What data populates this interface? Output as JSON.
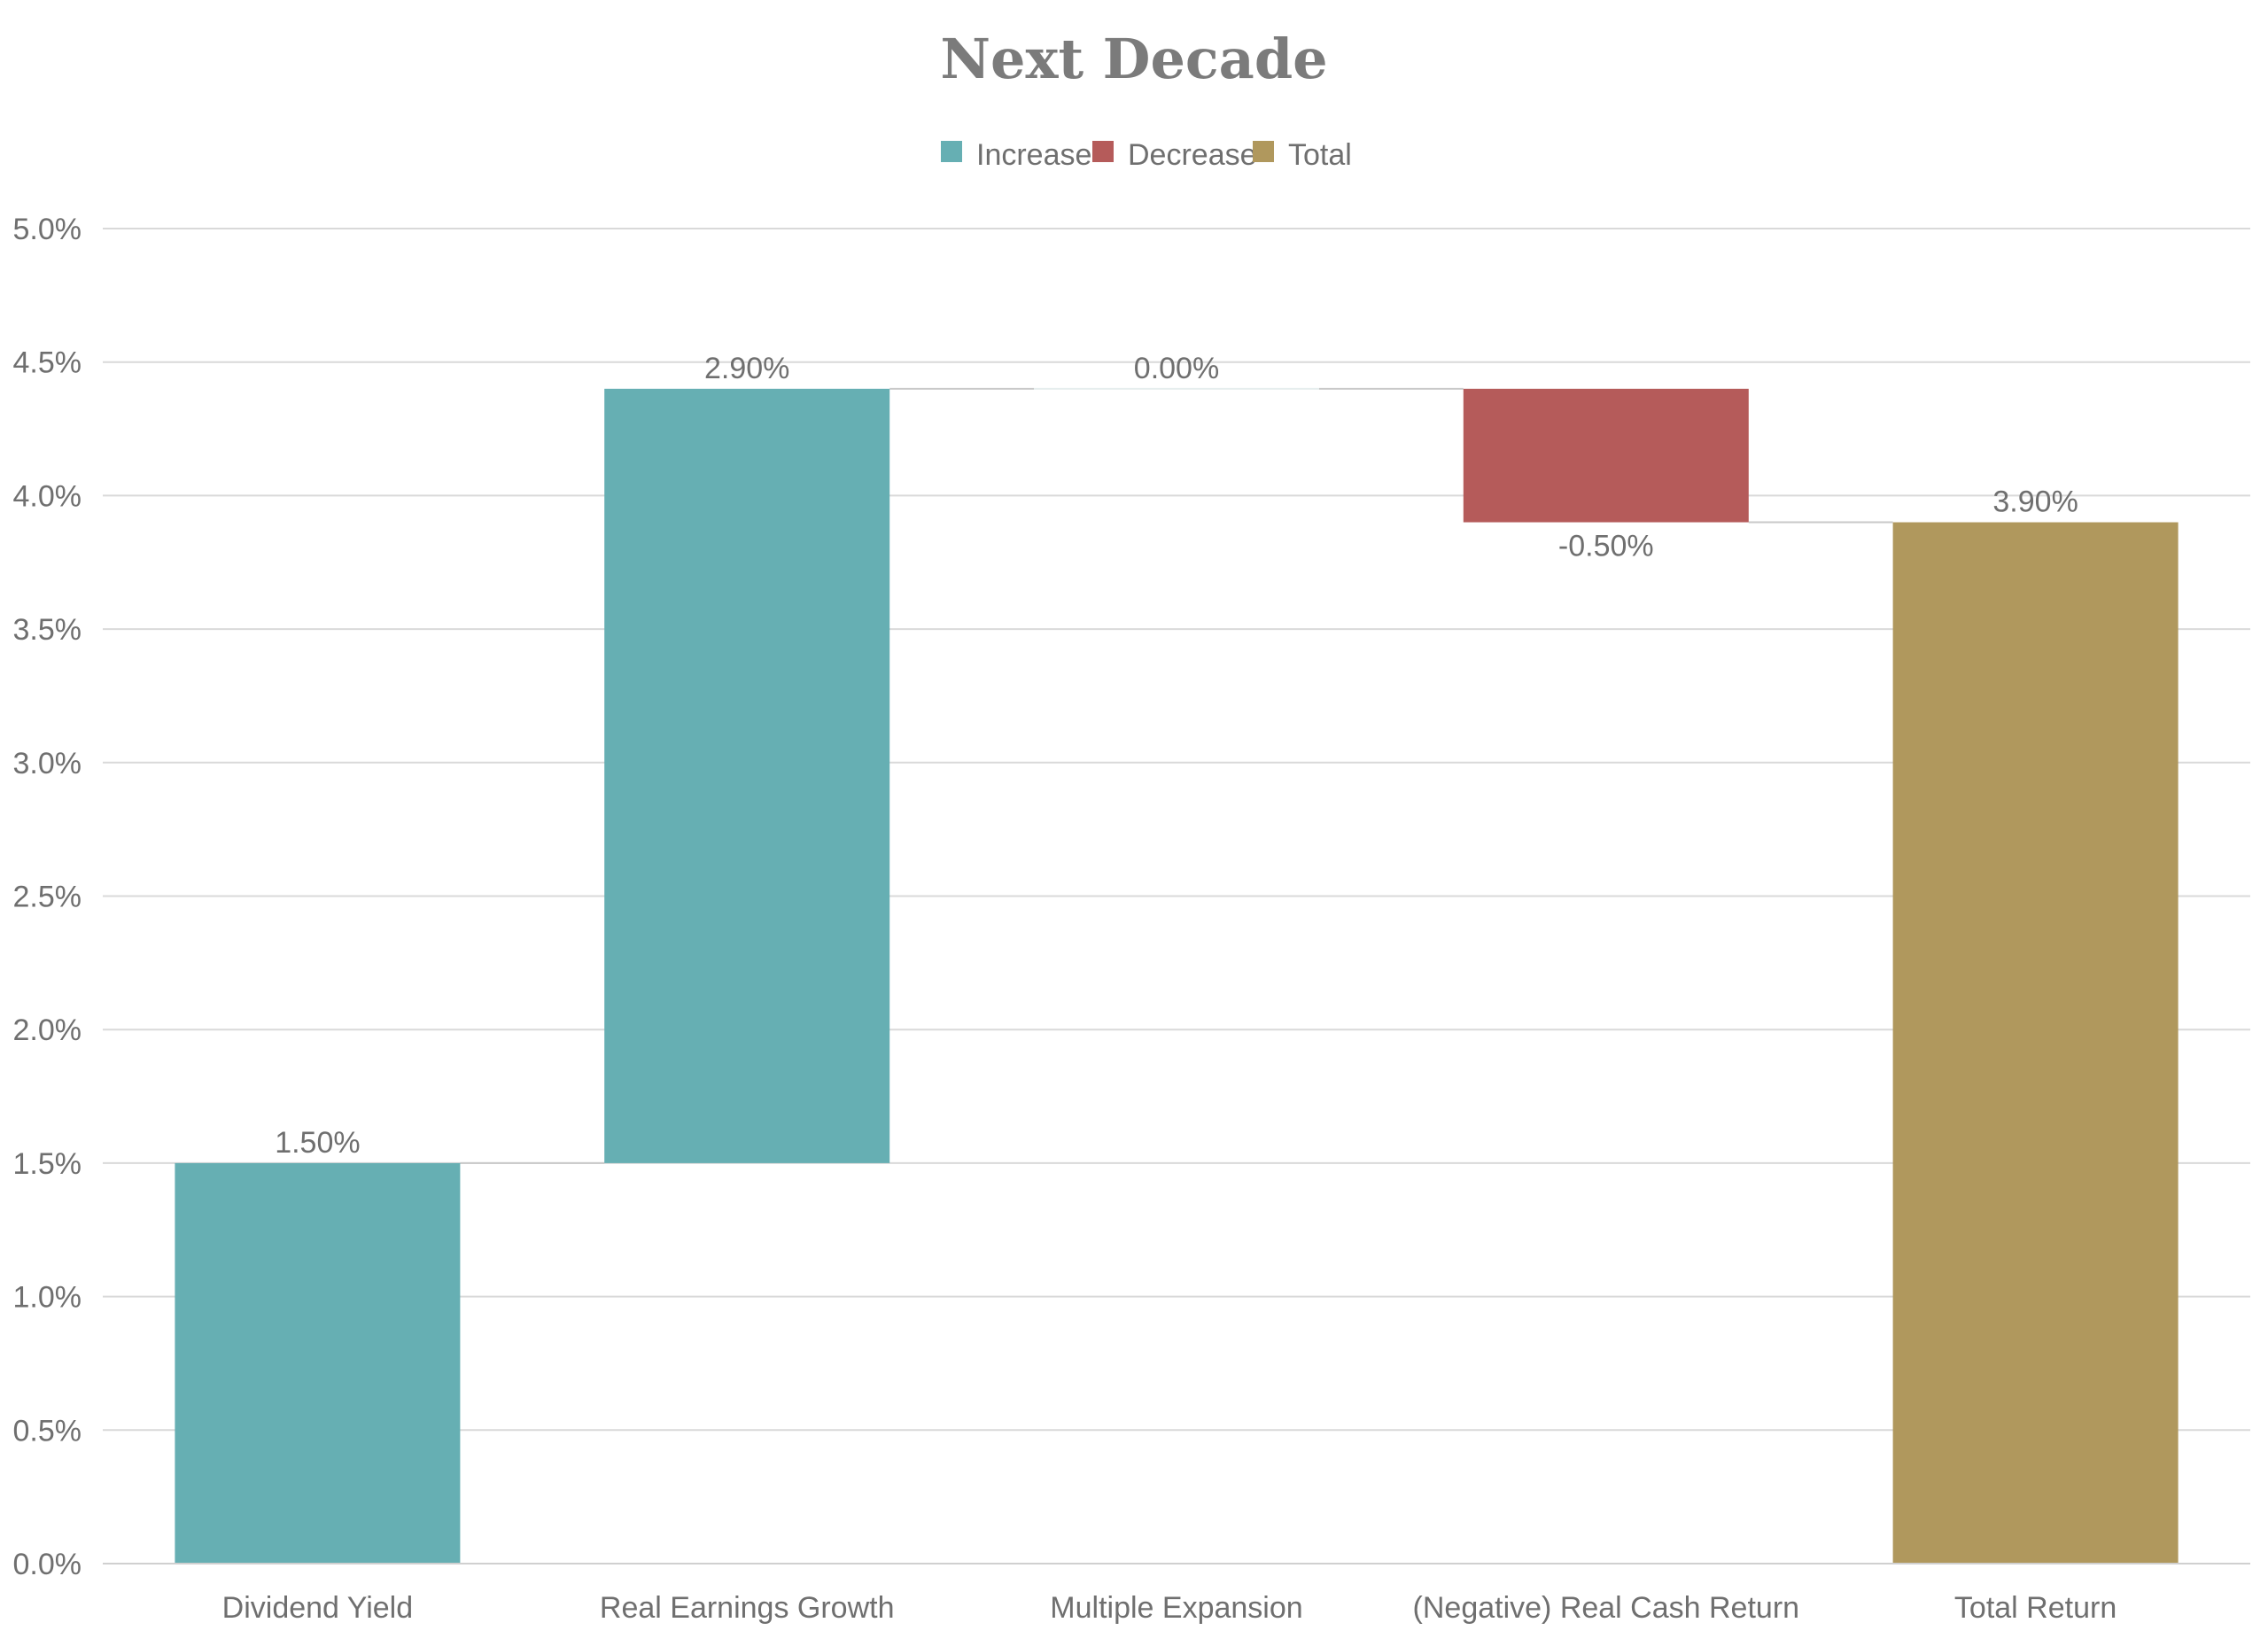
{
  "chart_data": {
    "type": "bar",
    "subtype": "waterfall",
    "title": "Next Decade",
    "xlabel": "",
    "ylabel": "",
    "ylim": [
      0,
      5.0
    ],
    "grid": true,
    "legend": {
      "placement": "top-center",
      "entries": [
        {
          "name": "Increase",
          "color": "#66afb3"
        },
        {
          "name": "Decrease",
          "color": "#b55b5a"
        },
        {
          "name": "Total",
          "color": "#b0985d"
        }
      ]
    },
    "y_ticks": [
      {
        "value": 0.0,
        "label": "0.0%"
      },
      {
        "value": 0.5,
        "label": "0.5%"
      },
      {
        "value": 1.0,
        "label": "1.0%"
      },
      {
        "value": 1.5,
        "label": "1.5%"
      },
      {
        "value": 2.0,
        "label": "2.0%"
      },
      {
        "value": 2.5,
        "label": "2.5%"
      },
      {
        "value": 3.0,
        "label": "3.0%"
      },
      {
        "value": 3.5,
        "label": "3.5%"
      },
      {
        "value": 4.0,
        "label": "4.0%"
      },
      {
        "value": 4.5,
        "label": "4.5%"
      },
      {
        "value": 5.0,
        "label": "5.0%"
      }
    ],
    "categories": [
      "Dividend Yield",
      "Real Earnings Growth",
      "Multiple Expansion",
      "(Negative) Real Cash Return",
      "Total Return"
    ],
    "values": [
      1.5,
      2.9,
      0.0,
      -0.5,
      3.9
    ],
    "bar_kinds": [
      "increase",
      "increase",
      "increase",
      "decrease",
      "total"
    ],
    "data_labels": [
      "1.50%",
      "2.90%",
      "0.00%",
      "-0.50%",
      "3.90%"
    ]
  }
}
